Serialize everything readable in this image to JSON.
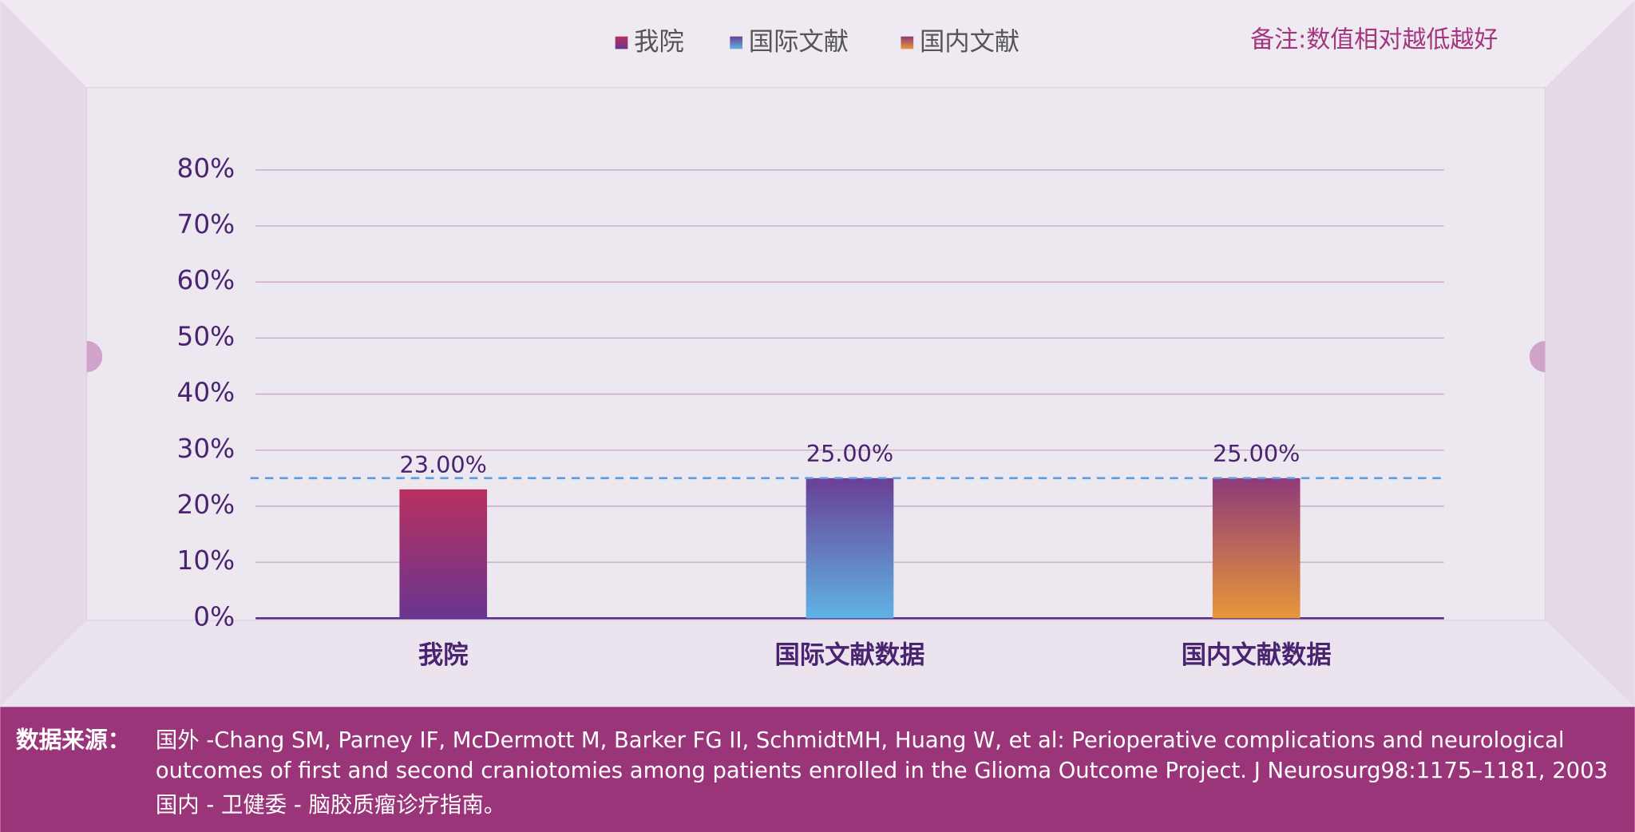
{
  "chart_data": {
    "type": "bar",
    "legend": [
      "我院",
      "国际文献",
      "国内文献"
    ],
    "note": "备注:数值相对越低越好",
    "categories": [
      "我院",
      "国际文献数据",
      "国内文献数据"
    ],
    "values": [
      23,
      25,
      25
    ],
    "value_labels": [
      "23.00%",
      "25.00%",
      "25.00%"
    ],
    "colors": [
      [
        "#b8305f",
        "#6a3590"
      ],
      [
        "#6a3f95",
        "#5fb3e5"
      ],
      [
        "#8e3a7a",
        "#e8963a"
      ]
    ],
    "ylim": [
      0,
      80
    ],
    "yticks": [
      {
        "value": 0,
        "label": "0%"
      },
      {
        "value": 10,
        "label": "10%"
      },
      {
        "value": 20,
        "label": "20%"
      },
      {
        "value": 30,
        "label": "30%"
      },
      {
        "value": 40,
        "label": "40%"
      },
      {
        "value": 50,
        "label": "50%"
      },
      {
        "value": 60,
        "label": "60%"
      },
      {
        "value": 70,
        "label": "70%"
      },
      {
        "value": 80,
        "label": "80%"
      }
    ],
    "reference_line": 25,
    "grid": true
  },
  "footer": {
    "label": "数据来源：",
    "lines": [
      "国外 -Chang SM, Parney IF, McDermott M, Barker FG II, SchmidtMH, Huang W, et al: Perioperative complications and neurological",
      "outcomes of first and second craniotomies among patients enrolled in the Glioma Outcome Project. J Neurosurg98:1175–1181, 2003",
      "国内 - 卫健委 - 脑胶质瘤诊疗指南。"
    ]
  }
}
